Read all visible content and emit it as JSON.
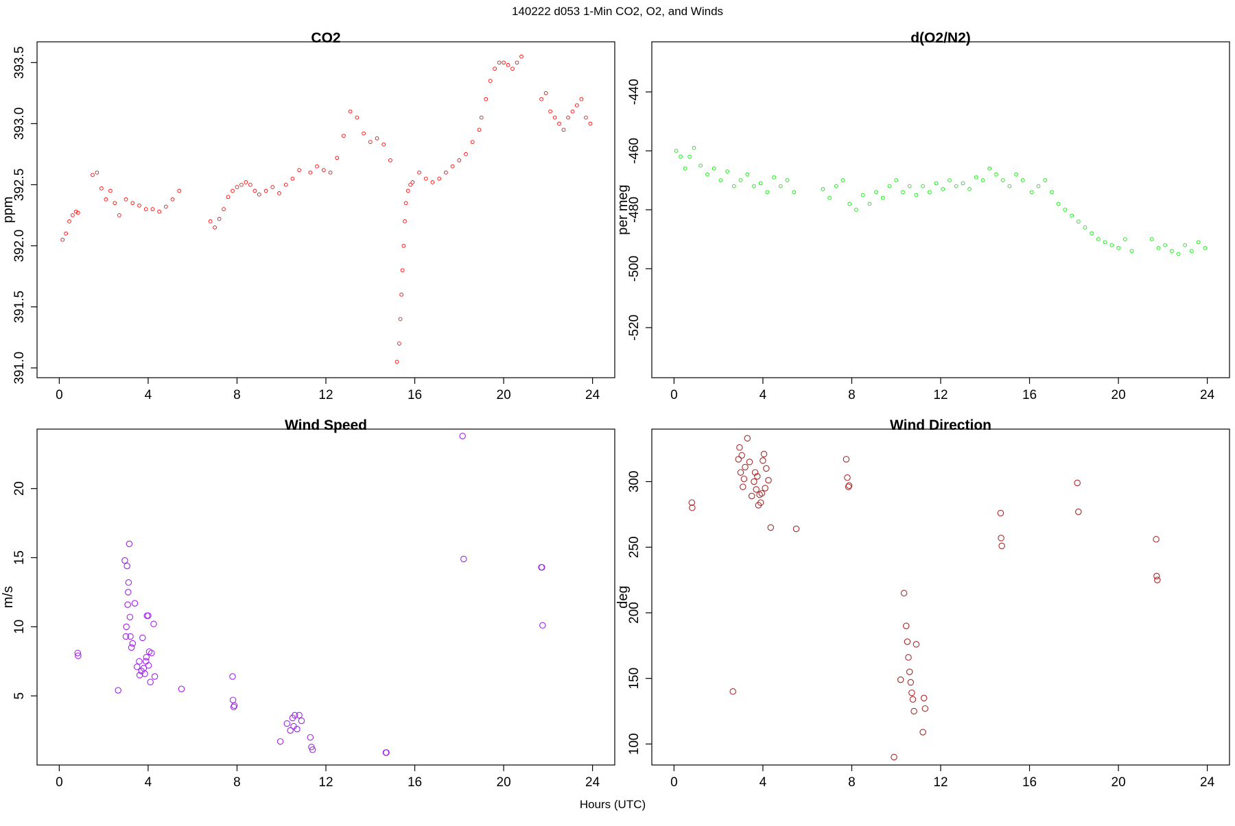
{
  "figure": {
    "title": "140222   d053   1-Min CO2, O2, and Winds",
    "xlabel": "Hours (UTC)"
  },
  "chart_data": [
    {
      "id": "co2",
      "type": "scatter",
      "title": "CO2",
      "ylabel": "ppm",
      "xlim": [
        -1,
        25
      ],
      "ylim": [
        390.92,
        393.67
      ],
      "x_ticks": [
        0,
        4,
        8,
        12,
        16,
        20,
        24
      ],
      "y_ticks": [
        391.0,
        391.5,
        392.0,
        392.5,
        393.0,
        393.5
      ],
      "x_tick_labels": [
        "0",
        "4",
        "8",
        "12",
        "16",
        "20",
        "24"
      ],
      "y_tick_labels": [
        "391.0",
        "391.5",
        "392.0",
        "392.5",
        "393.0",
        "393.5"
      ],
      "color": "#ff0000",
      "marker": "open-circle-small",
      "segments": [
        {
          "x": [
            0.15,
            0.3,
            0.45,
            0.6,
            0.75,
            0.85
          ],
          "y": [
            392.05,
            392.1,
            392.2,
            392.25,
            392.28,
            392.27
          ]
        },
        {
          "x": [
            1.5,
            1.7,
            1.9,
            2.1,
            2.3,
            2.5,
            2.7
          ],
          "y": [
            392.58,
            392.6,
            392.47,
            392.38,
            392.45,
            392.35,
            392.25
          ]
        },
        {
          "x": [
            3.0,
            3.3,
            3.6,
            3.9,
            4.2,
            4.5,
            4.8,
            5.1,
            5.4
          ],
          "y": [
            392.38,
            392.35,
            392.33,
            392.3,
            392.3,
            392.28,
            392.32,
            392.38,
            392.45
          ]
        },
        {
          "x": [
            6.8,
            7.0,
            7.2,
            7.4,
            7.6,
            7.8,
            8.0,
            8.2,
            8.4,
            8.6,
            8.8
          ],
          "y": [
            392.2,
            392.15,
            392.22,
            392.3,
            392.4,
            392.45,
            392.48,
            392.5,
            392.52,
            392.5,
            392.45
          ]
        },
        {
          "x": [
            9.0,
            9.3,
            9.6,
            9.9,
            10.2,
            10.5,
            10.8
          ],
          "y": [
            392.42,
            392.45,
            392.48,
            392.43,
            392.5,
            392.55,
            392.62
          ]
        },
        {
          "x": [
            11.3,
            11.6,
            11.9,
            12.2,
            12.5,
            12.8,
            13.1,
            13.4,
            13.7,
            14.0,
            14.3,
            14.6,
            14.9
          ],
          "y": [
            392.6,
            392.65,
            392.62,
            392.6,
            392.72,
            392.9,
            393.1,
            393.05,
            392.92,
            392.85,
            392.88,
            392.83,
            392.7
          ]
        },
        {
          "x": [
            15.2,
            15.3,
            15.35,
            15.4,
            15.45,
            15.5,
            15.55,
            15.6,
            15.7,
            15.8,
            15.9
          ],
          "y": [
            391.05,
            391.2,
            391.4,
            391.6,
            391.8,
            392.0,
            392.2,
            392.35,
            392.45,
            392.5,
            392.52
          ]
        },
        {
          "x": [
            16.2,
            16.5,
            16.8,
            17.1,
            17.4,
            17.7,
            18.0,
            18.3,
            18.6,
            18.9
          ],
          "y": [
            392.6,
            392.55,
            392.52,
            392.55,
            392.6,
            392.65,
            392.7,
            392.75,
            392.85,
            392.95
          ]
        },
        {
          "x": [
            19.0,
            19.2,
            19.4,
            19.6,
            19.8,
            20.0,
            20.2,
            20.4,
            20.6,
            20.8
          ],
          "y": [
            393.05,
            393.2,
            393.35,
            393.45,
            393.5,
            393.5,
            393.48,
            393.45,
            393.5,
            393.55
          ]
        },
        {
          "x": [
            21.7,
            21.9,
            22.1,
            22.3,
            22.5,
            22.7,
            22.9,
            23.1,
            23.3,
            23.5,
            23.7,
            23.9
          ],
          "y": [
            393.2,
            393.25,
            393.1,
            393.05,
            393.0,
            392.95,
            393.05,
            393.1,
            393.15,
            393.2,
            393.05,
            393.0
          ]
        }
      ]
    },
    {
      "id": "o2",
      "type": "scatter",
      "title": "d(O2/N2)",
      "ylabel": "per meg",
      "xlim": [
        -1,
        25
      ],
      "ylim": [
        -537,
        -423
      ],
      "x_ticks": [
        0,
        4,
        8,
        12,
        16,
        20,
        24
      ],
      "y_ticks": [
        -520,
        -500,
        -480,
        -460,
        -440
      ],
      "x_tick_labels": [
        "0",
        "4",
        "8",
        "12",
        "16",
        "20",
        "24"
      ],
      "y_tick_labels": [
        "-520",
        "-500",
        "-480",
        "-460",
        "-440"
      ],
      "color": "#00ee00",
      "marker": "open-circle-small",
      "segments": [
        {
          "x": [
            0.1,
            0.3,
            0.5,
            0.7,
            0.9,
            1.2,
            1.5,
            1.8,
            2.1,
            2.4,
            2.7,
            3.0,
            3.3,
            3.6,
            3.9,
            4.2,
            4.5,
            4.8,
            5.1,
            5.4
          ],
          "y": [
            -460,
            -462,
            -466,
            -462,
            -459,
            -465,
            -468,
            -466,
            -470,
            -467,
            -472,
            -470,
            -468,
            -472,
            -471,
            -474,
            -469,
            -472,
            -470,
            -474
          ]
        },
        {
          "x": [
            6.7,
            7.0,
            7.3,
            7.6,
            7.9,
            8.2,
            8.5,
            8.8,
            9.1,
            9.4,
            9.7,
            10.0,
            10.3,
            10.6,
            10.9
          ],
          "y": [
            -473,
            -476,
            -472,
            -470,
            -478,
            -480,
            -475,
            -478,
            -474,
            -476,
            -472,
            -470,
            -474,
            -472,
            -475
          ]
        },
        {
          "x": [
            11.2,
            11.5,
            11.8,
            12.1,
            12.4,
            12.7,
            13.0,
            13.3,
            13.6,
            13.9,
            14.2,
            14.5,
            14.8,
            15.1,
            15.4,
            15.7
          ],
          "y": [
            -472,
            -474,
            -471,
            -473,
            -470,
            -472,
            -471,
            -473,
            -469,
            -470,
            -466,
            -468,
            -470,
            -472,
            -468,
            -470
          ]
        },
        {
          "x": [
            16.1,
            16.4,
            16.7,
            17.0,
            17.3,
            17.6,
            17.9,
            18.2,
            18.5,
            18.8,
            19.1,
            19.4,
            19.7,
            20.0,
            20.3,
            20.6
          ],
          "y": [
            -474,
            -472,
            -470,
            -474,
            -478,
            -480,
            -482,
            -484,
            -486,
            -488,
            -490,
            -491,
            -492,
            -493,
            -490,
            -494
          ]
        },
        {
          "x": [
            21.5,
            21.8,
            22.1,
            22.4,
            22.7,
            23.0,
            23.3,
            23.6,
            23.9
          ],
          "y": [
            -490,
            -493,
            -492,
            -494,
            -495,
            -492,
            -494,
            -491,
            -493
          ]
        }
      ]
    },
    {
      "id": "wspd",
      "type": "scatter",
      "title": "Wind Speed",
      "ylabel": "m/s",
      "xlim": [
        -1,
        25
      ],
      "ylim": [
        0,
        24.3
      ],
      "x_ticks": [
        0,
        4,
        8,
        12,
        16,
        20,
        24
      ],
      "y_ticks": [
        5,
        10,
        15,
        20
      ],
      "x_tick_labels": [
        "0",
        "4",
        "8",
        "12",
        "16",
        "20",
        "24"
      ],
      "y_tick_labels": [
        "5",
        "10",
        "15",
        "20"
      ],
      "color": "#a020f0",
      "marker": "open-circle",
      "x": [
        0.83,
        0.85,
        2.65,
        2.95,
        3.0,
        3.02,
        3.05,
        3.08,
        3.1,
        3.12,
        3.15,
        3.18,
        3.2,
        3.25,
        3.3,
        3.4,
        3.5,
        3.6,
        3.62,
        3.7,
        3.75,
        3.8,
        3.85,
        3.9,
        3.92,
        3.95,
        4.0,
        4.02,
        4.05,
        4.1,
        4.15,
        4.25,
        4.3,
        5.5,
        7.8,
        7.82,
        7.85,
        7.88,
        9.95,
        10.25,
        10.4,
        10.5,
        10.55,
        10.6,
        10.7,
        10.8,
        10.9,
        11.3,
        11.35,
        11.4,
        14.7,
        14.72,
        18.15,
        18.2,
        21.7,
        21.72,
        21.75
      ],
      "y": [
        8.1,
        7.9,
        5.4,
        14.8,
        9.3,
        10.0,
        14.4,
        11.6,
        12.5,
        13.2,
        16.0,
        10.7,
        9.3,
        8.5,
        8.8,
        11.7,
        7.1,
        7.5,
        6.5,
        6.8,
        9.2,
        7.0,
        6.6,
        7.5,
        7.8,
        10.8,
        10.8,
        7.2,
        8.2,
        6.0,
        8.1,
        10.2,
        6.4,
        5.5,
        6.4,
        4.7,
        4.2,
        4.3,
        1.7,
        3.0,
        2.5,
        3.4,
        2.8,
        3.6,
        2.6,
        3.6,
        3.2,
        2.0,
        1.3,
        1.1,
        0.9,
        0.9,
        23.8,
        14.9,
        14.3,
        14.3,
        10.1
      ]
    },
    {
      "id": "wdir",
      "type": "scatter",
      "title": "Wind Direction",
      "ylabel": "deg",
      "xlim": [
        -1,
        25
      ],
      "ylim": [
        84,
        340
      ],
      "x_ticks": [
        0,
        4,
        8,
        12,
        16,
        20,
        24
      ],
      "y_ticks": [
        100,
        150,
        200,
        250,
        300
      ],
      "x_tick_labels": [
        "0",
        "4",
        "8",
        "12",
        "16",
        "20",
        "24"
      ],
      "y_tick_labels": [
        "100",
        "150",
        "200",
        "250",
        "300"
      ],
      "color": "#a52a2a",
      "marker": "open-circle",
      "x": [
        0.8,
        0.82,
        2.65,
        2.9,
        2.95,
        3.0,
        3.05,
        3.1,
        3.15,
        3.2,
        3.3,
        3.4,
        3.5,
        3.6,
        3.65,
        3.7,
        3.75,
        3.8,
        3.85,
        3.9,
        3.95,
        4.0,
        4.05,
        4.1,
        4.15,
        4.25,
        4.35,
        5.5,
        7.75,
        7.8,
        7.85,
        7.88,
        9.9,
        10.2,
        10.35,
        10.45,
        10.5,
        10.55,
        10.6,
        10.65,
        10.7,
        10.75,
        10.8,
        10.9,
        11.2,
        11.25,
        11.3,
        14.7,
        14.72,
        14.75,
        18.15,
        18.2,
        21.7,
        21.72,
        21.75
      ],
      "y": [
        284,
        280,
        140,
        317,
        326,
        307,
        320,
        296,
        302,
        311,
        333,
        315,
        289,
        300,
        307,
        294,
        304,
        282,
        290,
        284,
        291,
        316,
        321,
        295,
        310,
        301,
        265,
        264,
        317,
        303,
        296,
        297,
        90,
        149,
        215,
        190,
        178,
        166,
        155,
        147,
        139,
        134,
        125,
        176,
        109,
        135,
        127,
        276,
        257,
        251,
        299,
        277,
        256,
        228,
        225
      ]
    }
  ]
}
